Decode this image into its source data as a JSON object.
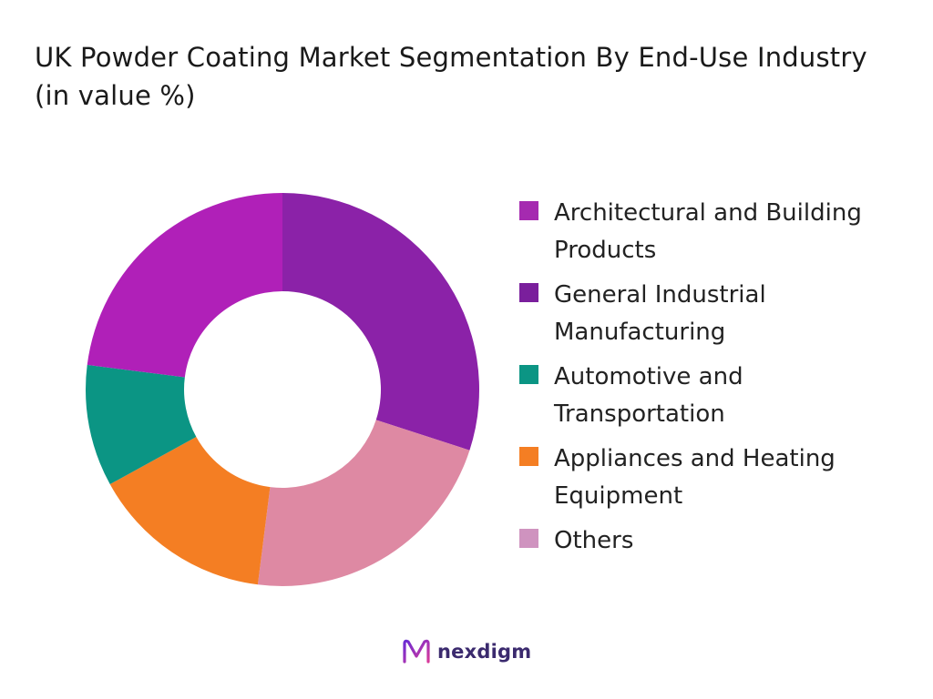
{
  "title": "UK Powder Coating Market Segmentation By End-Use Industry (in value %)",
  "chart_data": {
    "type": "pie",
    "donut": true,
    "title": "UK Powder Coating Market Segmentation By End-Use Industry (in value %)",
    "legend_position": "right",
    "categories": [
      "Architectural and Building Products",
      "General Industrial Manufacturing",
      "Automotive and Transportation",
      "Appliances and Heating Equipment",
      "Others"
    ],
    "values": [
      23,
      30,
      10,
      15,
      22
    ],
    "slice_order": [
      "General Industrial Manufacturing",
      "Others",
      "Appliances and Heating Equipment",
      "Automotive and Transportation",
      "Architectural and Building Products"
    ],
    "colors": {
      "Architectural and Building Products": "#b020b8",
      "General Industrial Manufacturing": "#8b22a8",
      "Automotive and Transportation": "#0b9584",
      "Appliances and Heating Equipment": "#f47e23",
      "Others": "#de89a3"
    },
    "legend_colors": {
      "Architectural and Building Products": "#a52ab0",
      "General Industrial Manufacturing": "#7a1f9c",
      "Automotive and Transportation": "#0b9584",
      "Appliances and Heating Equipment": "#f47e23",
      "Others": "#cf93bf"
    }
  },
  "legend": [
    {
      "label": "Architectural and Building Products"
    },
    {
      "label": "General Industrial Manufacturing"
    },
    {
      "label": "Automotive and Transportation"
    },
    {
      "label": "Appliances and Heating Equipment"
    },
    {
      "label": "Others"
    }
  ],
  "logo": {
    "text": "nexdigm",
    "icon": "nexdigm-logo-icon"
  }
}
